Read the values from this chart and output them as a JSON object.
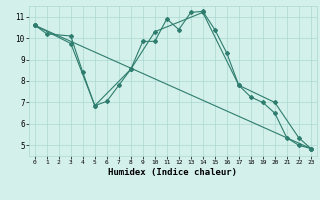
{
  "xlabel": "Humidex (Indice chaleur)",
  "line1_x": [
    0,
    1,
    3,
    4,
    5,
    6,
    7,
    8,
    9,
    10,
    11,
    12,
    13,
    14,
    15,
    16,
    17,
    18,
    19,
    20,
    21,
    22,
    23
  ],
  "line1_y": [
    10.6,
    10.2,
    10.1,
    8.4,
    6.85,
    7.05,
    7.8,
    8.55,
    9.85,
    9.85,
    10.9,
    10.4,
    11.2,
    11.25,
    10.4,
    9.3,
    7.8,
    7.25,
    7.0,
    6.5,
    5.35,
    5.0,
    4.85
  ],
  "line2_x": [
    0,
    3,
    5,
    8,
    10,
    14,
    17,
    20,
    22,
    23
  ],
  "line2_y": [
    10.6,
    9.75,
    6.85,
    8.55,
    10.3,
    11.2,
    7.8,
    7.0,
    5.35,
    4.85
  ],
  "line3_x": [
    0,
    23
  ],
  "line3_y": [
    10.6,
    4.85
  ],
  "color": "#2e7d6e",
  "bg_color": "#d4f0eb",
  "grid_color": "#a8d8d0",
  "xlim": [
    -0.5,
    23.5
  ],
  "ylim": [
    4.5,
    11.5
  ],
  "yticks": [
    5,
    6,
    7,
    8,
    9,
    10,
    11
  ],
  "xticks": [
    0,
    1,
    2,
    3,
    4,
    5,
    6,
    7,
    8,
    9,
    10,
    11,
    12,
    13,
    14,
    15,
    16,
    17,
    18,
    19,
    20,
    21,
    22,
    23
  ]
}
